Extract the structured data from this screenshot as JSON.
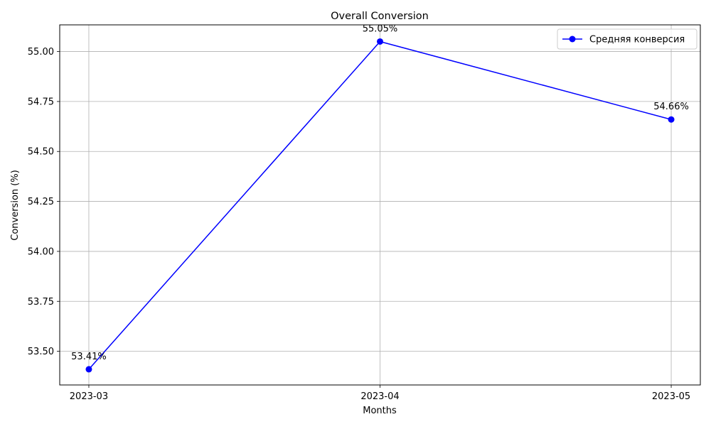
{
  "chart_data": {
    "type": "line",
    "title": "Overall Conversion",
    "xlabel": "Months",
    "ylabel": "Conversion (%)",
    "categories": [
      "2023-03",
      "2023-04",
      "2023-05"
    ],
    "ylim": [
      53.3315,
      55.1335
    ],
    "yticks": [
      53.5,
      53.75,
      54.0,
      54.25,
      54.5,
      54.75,
      55.0
    ],
    "ytick_labels": [
      "53.50",
      "53.75",
      "54.00",
      "54.25",
      "54.50",
      "54.75",
      "55.00"
    ],
    "grid": true,
    "legend_position": "top-right",
    "series": [
      {
        "name": "Средняя конверсия",
        "color": "#0000ff",
        "marker": "circle",
        "values": [
          53.41,
          55.05,
          54.66
        ],
        "labels": [
          "53.41%",
          "55.05%",
          "54.66%"
        ]
      }
    ]
  }
}
